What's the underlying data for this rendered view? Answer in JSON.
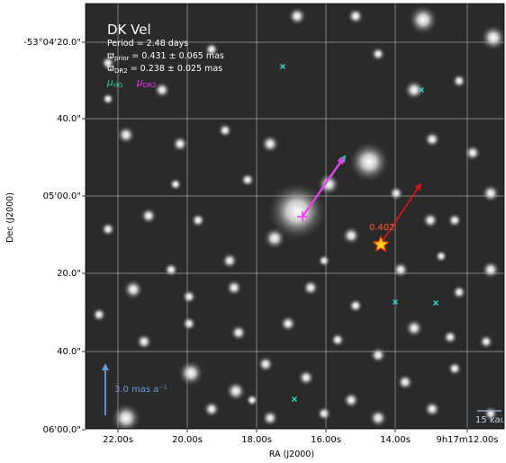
{
  "chart_data": {
    "type": "scatter",
    "title": "DK Vel",
    "info_lines": {
      "period": "Period =   2.48 days",
      "prior": "ϖprior = 0.431 ± 0.065 mas",
      "dr2": "ϖDR2 = 0.238 ± 0.025 mas"
    },
    "legend": [
      {
        "name": "μHG",
        "color": "#2ecc9a"
      },
      {
        "name": "μDR2",
        "color": "#ff33ff"
      }
    ],
    "xlabel": "RA (J2000)",
    "ylabel": "Dec (J2000)",
    "x_ticks": [
      "22.00s",
      "20.00s",
      "18.00s",
      "16.00s",
      "14.00s",
      "9h17m12.00s"
    ],
    "y_ticks": [
      "-53°04'20.0\"",
      "40.0\"",
      "05'00.0\"",
      "20.0\"",
      "40.0\"",
      "06'00.0\""
    ],
    "target": {
      "label": "0.402",
      "color": "#ff3b1f"
    },
    "scale_arrow_label": "3.0 mas a⁻¹",
    "scale_bar_label": "15 kau",
    "cyan_markers": 5,
    "background": "greyscale star field",
    "grid": true
  }
}
